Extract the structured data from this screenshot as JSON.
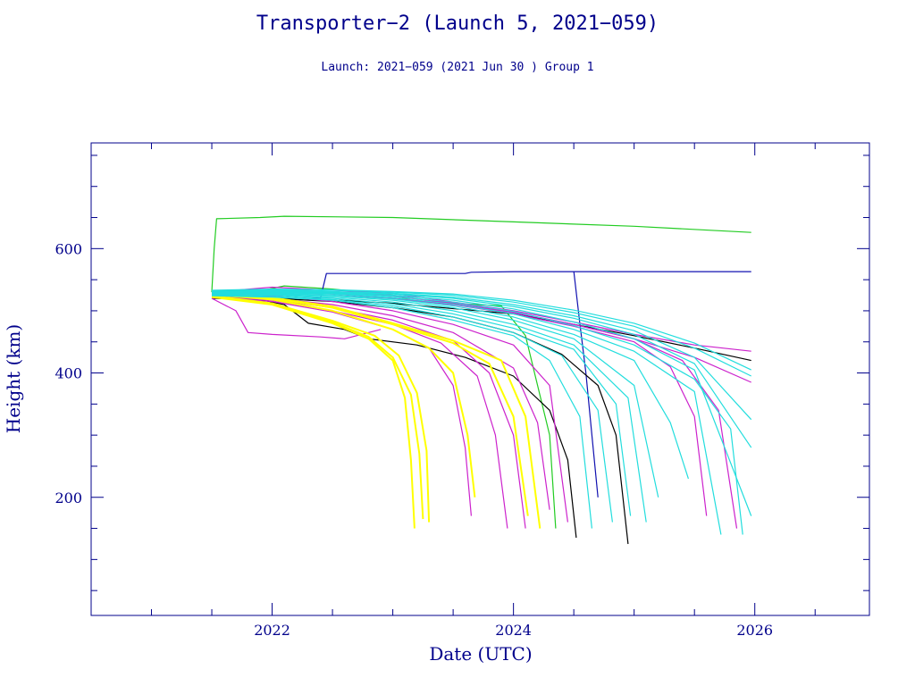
{
  "title": "Transporter−2 (Launch 5, 2021−059)",
  "subtitle": "Launch: 2021−059  (2021 Jun 30 )  Group 1",
  "colors": {
    "axis": "#00008b",
    "green": "#22cc22",
    "blue": "#1010b0",
    "magenta": "#cc22cc",
    "cyan": "#22dddd",
    "yellow": "#ffff00",
    "black": "#000000"
  },
  "chart_data": {
    "type": "line",
    "xlabel": "Date (UTC)",
    "ylabel": "Height (km)",
    "xlim": [
      2020.5,
      2026.95
    ],
    "ylim": [
      10,
      770
    ],
    "xticks": [
      2022,
      2024,
      2026
    ],
    "yticks": [
      200,
      400,
      600
    ],
    "series": [
      {
        "color": "green",
        "x": [
          2021.5,
          2021.52,
          2021.54,
          2021.9,
          2022.1,
          2023.0,
          2024.0,
          2025.0,
          2025.97
        ],
        "y": [
          530,
          600,
          648,
          650,
          652,
          650,
          643,
          636,
          626
        ]
      },
      {
        "color": "green",
        "x": [
          2021.55,
          2021.85,
          2022.1,
          2022.5,
          2023.0,
          2023.2,
          2023.5,
          2023.9,
          2024.1,
          2024.3,
          2024.35
        ],
        "y": [
          530,
          530,
          540,
          535,
          525,
          515,
          512,
          508,
          460,
          300,
          150
        ]
      },
      {
        "color": "blue",
        "x": [
          2021.5,
          2022.4,
          2022.45,
          2023.0,
          2023.6,
          2023.65,
          2024.0,
          2024.5,
          2025.0,
          2025.97
        ],
        "y": [
          520,
          520,
          560,
          560,
          560,
          562,
          563,
          563,
          563,
          563
        ]
      },
      {
        "color": "blue",
        "x": [
          2024.5,
          2024.55,
          2024.6,
          2024.65,
          2024.7
        ],
        "y": [
          563,
          480,
          400,
          300,
          200
        ]
      },
      {
        "color": "black",
        "x": [
          2021.5,
          2021.9,
          2022.1,
          2022.3,
          2022.6,
          2022.8,
          2023.2,
          2023.6,
          2024.0,
          2024.3,
          2024.45,
          2024.52
        ],
        "y": [
          520,
          518,
          510,
          480,
          470,
          455,
          445,
          425,
          395,
          340,
          260,
          135
        ]
      },
      {
        "color": "black",
        "x": [
          2021.5,
          2022.0,
          2022.5,
          2023.0,
          2023.5,
          2024.0,
          2024.4,
          2024.7,
          2024.85,
          2024.95
        ],
        "y": [
          522,
          520,
          515,
          505,
          490,
          465,
          430,
          380,
          300,
          125
        ]
      },
      {
        "color": "black",
        "x": [
          2021.5,
          2022.0,
          2023.0,
          2024.0,
          2024.5,
          2025.0,
          2025.5,
          2025.97
        ],
        "y": [
          525,
          523,
          512,
          495,
          478,
          460,
          440,
          420
        ]
      },
      {
        "color": "magenta",
        "x": [
          2021.5,
          2021.7,
          2021.8,
          2022.0,
          2022.4,
          2022.6,
          2022.8,
          2022.9
        ],
        "y": [
          520,
          500,
          465,
          462,
          458,
          455,
          465,
          470
        ]
      },
      {
        "color": "magenta",
        "x": [
          2021.5,
          2022.0,
          2022.5,
          2023.0,
          2023.3,
          2023.5,
          2023.6,
          2023.65
        ],
        "y": [
          521,
          515,
          498,
          470,
          440,
          380,
          280,
          170
        ]
      },
      {
        "color": "magenta",
        "x": [
          2021.5,
          2022.0,
          2022.5,
          2023.0,
          2023.4,
          2023.7,
          2023.85,
          2023.95
        ],
        "y": [
          522,
          517,
          500,
          478,
          448,
          395,
          300,
          150
        ]
      },
      {
        "color": "magenta",
        "x": [
          2021.5,
          2022.0,
          2022.5,
          2023.0,
          2023.5,
          2023.8,
          2024.0,
          2024.1
        ],
        "y": [
          523,
          518,
          505,
          485,
          452,
          400,
          300,
          150
        ]
      },
      {
        "color": "magenta",
        "x": [
          2021.5,
          2022.0,
          2022.5,
          2023.0,
          2023.5,
          2024.0,
          2024.2,
          2024.3
        ],
        "y": [
          524,
          520,
          510,
          492,
          465,
          408,
          320,
          180
        ]
      },
      {
        "color": "magenta",
        "x": [
          2021.5,
          2022.0,
          2022.5,
          2023.0,
          2023.5,
          2024.0,
          2024.3,
          2024.45
        ],
        "y": [
          526,
          524,
          515,
          500,
          478,
          445,
          380,
          160
        ]
      },
      {
        "color": "magenta",
        "x": [
          2021.5,
          2022.0,
          2022.5,
          2023.0,
          2023.5,
          2024.0,
          2024.5,
          2025.0,
          2025.3,
          2025.5,
          2025.6
        ],
        "y": [
          528,
          530,
          527,
          520,
          510,
          495,
          475,
          450,
          410,
          330,
          170
        ]
      },
      {
        "color": "magenta",
        "x": [
          2021.5,
          2022.0,
          2022.5,
          2023.0,
          2023.5,
          2024.0,
          2024.5,
          2025.0,
          2025.4,
          2025.7,
          2025.85
        ],
        "y": [
          530,
          532,
          530,
          523,
          513,
          498,
          478,
          455,
          420,
          340,
          150
        ]
      },
      {
        "color": "magenta",
        "x": [
          2021.5,
          2022.0,
          2023.0,
          2024.0,
          2024.5,
          2025.0,
          2025.5,
          2025.97
        ],
        "y": [
          530,
          538,
          528,
          500,
          482,
          462,
          445,
          435
        ]
      },
      {
        "color": "magenta",
        "x": [
          2021.5,
          2022.0,
          2023.0,
          2024.0,
          2024.5,
          2025.0,
          2025.5,
          2025.97
        ],
        "y": [
          528,
          535,
          525,
          497,
          478,
          455,
          425,
          385
        ]
      },
      {
        "color": "yellow",
        "x": [
          2021.5,
          2022.0,
          2022.5,
          2022.8,
          2023.0,
          2023.1,
          2023.15,
          2023.18
        ],
        "y": [
          522,
          510,
          480,
          455,
          420,
          360,
          260,
          150
        ]
      },
      {
        "color": "yellow",
        "x": [
          2021.5,
          2022.0,
          2022.5,
          2022.8,
          2023.0,
          2023.15,
          2023.22,
          2023.25
        ],
        "y": [
          523,
          511,
          482,
          458,
          425,
          365,
          270,
          165
        ]
      },
      {
        "color": "yellow",
        "x": [
          2021.5,
          2022.0,
          2022.5,
          2022.85,
          2023.05,
          2023.2,
          2023.28,
          2023.3
        ],
        "y": [
          524,
          512,
          484,
          460,
          428,
          368,
          275,
          160
        ]
      },
      {
        "color": "yellow",
        "x": [
          2021.5,
          2022.0,
          2022.5,
          2023.0,
          2023.3,
          2023.5,
          2023.62,
          2023.68
        ],
        "y": [
          526,
          518,
          500,
          470,
          440,
          400,
          300,
          200
        ]
      },
      {
        "color": "yellow",
        "x": [
          2021.5,
          2022.0,
          2022.5,
          2023.0,
          2023.5,
          2023.8,
          2024.0,
          2024.12
        ],
        "y": [
          527,
          520,
          505,
          478,
          448,
          415,
          330,
          170
        ]
      },
      {
        "color": "yellow",
        "x": [
          2021.5,
          2022.0,
          2022.5,
          2023.0,
          2023.5,
          2023.9,
          2024.1,
          2024.22
        ],
        "y": [
          528,
          521,
          507,
          480,
          452,
          420,
          330,
          150
        ]
      },
      {
        "color": "cyan",
        "x": [
          2021.5,
          2022.0,
          2022.5,
          2023.0,
          2023.5,
          2024.0,
          2024.3,
          2024.55,
          2024.65
        ],
        "y": [
          524,
          522,
          517,
          505,
          485,
          460,
          420,
          330,
          150
        ]
      },
      {
        "color": "cyan",
        "x": [
          2021.5,
          2022.0,
          2022.5,
          2023.0,
          2023.5,
          2024.0,
          2024.4,
          2024.7,
          2024.82
        ],
        "y": [
          525,
          523,
          518,
          508,
          490,
          465,
          428,
          340,
          160
        ]
      },
      {
        "color": "cyan",
        "x": [
          2021.5,
          2022.0,
          2022.5,
          2023.0,
          2023.5,
          2024.0,
          2024.5,
          2024.85,
          2024.97
        ],
        "y": [
          526,
          525,
          520,
          511,
          495,
          472,
          438,
          350,
          170
        ]
      },
      {
        "color": "cyan",
        "x": [
          2021.5,
          2022.0,
          2022.5,
          2023.0,
          2023.5,
          2024.0,
          2024.5,
          2024.95,
          2025.1
        ],
        "y": [
          527,
          526,
          522,
          514,
          500,
          478,
          445,
          360,
          160
        ]
      },
      {
        "color": "cyan",
        "x": [
          2021.5,
          2022.0,
          2022.5,
          2023.0,
          2023.5,
          2024.0,
          2024.5,
          2025.0,
          2025.2
        ],
        "y": [
          528,
          527,
          524,
          517,
          505,
          485,
          455,
          380,
          200
        ]
      },
      {
        "color": "cyan",
        "x": [
          2021.5,
          2022.0,
          2022.5,
          2023.0,
          2023.5,
          2024.0,
          2024.5,
          2025.0,
          2025.3,
          2025.45
        ],
        "y": [
          528,
          528,
          525,
          519,
          508,
          490,
          462,
          420,
          320,
          230
        ]
      },
      {
        "color": "cyan",
        "x": [
          2021.5,
          2022.0,
          2022.5,
          2023.0,
          2023.5,
          2024.0,
          2024.5,
          2025.0,
          2025.5,
          2025.72
        ],
        "y": [
          529,
          529,
          527,
          521,
          511,
          495,
          470,
          435,
          370,
          140
        ]
      },
      {
        "color": "cyan",
        "x": [
          2021.5,
          2022.0,
          2022.5,
          2023.0,
          2023.5,
          2024.0,
          2024.5,
          2025.0,
          2025.5,
          2025.8,
          2025.9
        ],
        "y": [
          530,
          530,
          528,
          523,
          514,
          499,
          476,
          445,
          390,
          310,
          140
        ]
      },
      {
        "color": "cyan",
        "x": [
          2021.5,
          2022.0,
          2022.5,
          2023.0,
          2023.5,
          2024.0,
          2024.5,
          2025.0,
          2025.5,
          2025.97
        ],
        "y": [
          530,
          531,
          529,
          525,
          517,
          503,
          482,
          455,
          405,
          170
        ]
      },
      {
        "color": "cyan",
        "x": [
          2021.5,
          2022.0,
          2022.5,
          2023.0,
          2023.5,
          2024.0,
          2024.5,
          2025.0,
          2025.5,
          2025.97
        ],
        "y": [
          531,
          532,
          530,
          527,
          520,
          507,
          488,
          462,
          415,
          280
        ]
      },
      {
        "color": "cyan",
        "x": [
          2021.5,
          2022.0,
          2022.5,
          2023.0,
          2023.5,
          2024.0,
          2024.5,
          2025.0,
          2025.5,
          2025.97
        ],
        "y": [
          532,
          533,
          531,
          528,
          522,
          510,
          492,
          468,
          425,
          325
        ]
      },
      {
        "color": "cyan",
        "x": [
          2021.5,
          2022.0,
          2022.5,
          2023.0,
          2023.5,
          2024.0,
          2024.5,
          2025.0,
          2025.5,
          2025.97
        ],
        "y": [
          532,
          534,
          533,
          530,
          525,
          514,
          497,
          475,
          440,
          395
        ]
      },
      {
        "color": "cyan",
        "x": [
          2021.5,
          2022.0,
          2022.5,
          2023.0,
          2023.5,
          2024.0,
          2024.5,
          2025.0,
          2025.5,
          2025.97
        ],
        "y": [
          533,
          535,
          534,
          531,
          527,
          517,
          501,
          480,
          448,
          405
        ]
      }
    ]
  }
}
